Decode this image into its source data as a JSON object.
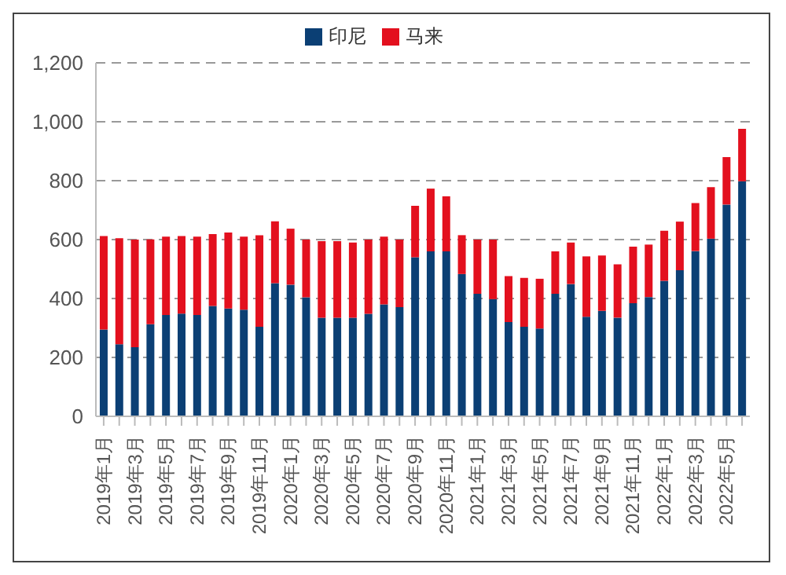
{
  "chart_data": {
    "type": "bar",
    "stacked": true,
    "categories": [
      "2019年1月",
      null,
      "2019年3月",
      null,
      "2019年5月",
      null,
      "2019年7月",
      null,
      "2019年9月",
      null,
      "2019年11月",
      null,
      "2020年1月",
      null,
      "2020年3月",
      null,
      "2020年5月",
      null,
      "2020年7月",
      null,
      "2020年9月",
      null,
      "2020年11月",
      null,
      "2021年1月",
      null,
      "2021年3月",
      null,
      "2021年5月",
      null,
      "2021年7月",
      null,
      "2021年9月",
      null,
      "2021年11月",
      null,
      "2022年1月",
      null,
      "2022年3月",
      null,
      "2022年5月",
      null
    ],
    "series": [
      {
        "name": "印尼",
        "color": "#0b3f74",
        "values": [
          295,
          245,
          235,
          313,
          344,
          349,
          344,
          375,
          366,
          362,
          304,
          452,
          447,
          404,
          335,
          335,
          335,
          348,
          380,
          371,
          540,
          560,
          560,
          483,
          416,
          398,
          320,
          304,
          298,
          416,
          449,
          338,
          358,
          335,
          384,
          405,
          460,
          496,
          561,
          603,
          719,
          798
        ]
      },
      {
        "name": "马来",
        "color": "#e3101e",
        "values": [
          317,
          360,
          365,
          288,
          266,
          263,
          266,
          244,
          258,
          248,
          311,
          210,
          190,
          196,
          260,
          260,
          255,
          252,
          230,
          229,
          175,
          213,
          187,
          132,
          184,
          202,
          156,
          166,
          169,
          144,
          141,
          205,
          188,
          181,
          192,
          178,
          170,
          165,
          163,
          175,
          161,
          178
        ]
      }
    ],
    "ylim": [
      0,
      1200
    ],
    "yticks": [
      0,
      200,
      400,
      600,
      800,
      {
        "value": 1000,
        "label": "1,000"
      },
      {
        "value": 1200,
        "label": "1,200"
      }
    ],
    "grid": "y",
    "legend": "top"
  }
}
